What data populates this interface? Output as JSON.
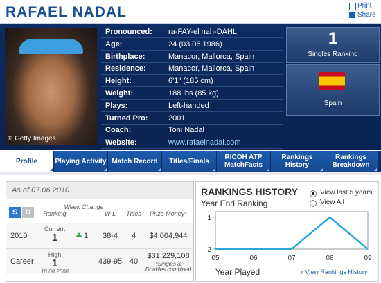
{
  "header": {
    "title": "RAFAEL NADAL",
    "links": [
      "Print",
      "Share"
    ]
  },
  "photo_credit": "© Getty Images",
  "bio": [
    {
      "label": "Pronounced:",
      "value": "ra-FAY-el nah-DAHL"
    },
    {
      "label": "Age:",
      "value": "24 (03.06.1986)"
    },
    {
      "label": "Birthplace:",
      "value": "Manacor, Mallorca, Spain"
    },
    {
      "label": "Residence:",
      "value": "Manacor, Mallorca, Spain"
    },
    {
      "label": "Height:",
      "value": "6'1\" (185 cm)"
    },
    {
      "label": "Weight:",
      "value": "188 lbs (85 kg)"
    },
    {
      "label": "Plays:",
      "value": "Left-handed"
    },
    {
      "label": "Turned Pro:",
      "value": "2001"
    },
    {
      "label": "Coach:",
      "value": "Toni Nadal"
    },
    {
      "label": "Website:",
      "value": "www.rafaelnadal.com"
    }
  ],
  "ranking_box": {
    "value": 1,
    "label": "Singles Ranking"
  },
  "country": "Spain",
  "tabs": [
    "Profile",
    "Playing Activity",
    "Match Record",
    "Titles/Finals",
    "RICOH ATP MatchFacts",
    "Rankings History",
    "Rankings Breakdown"
  ],
  "stats": {
    "as_of": "As of 07.06.2010",
    "toggles": [
      "S",
      "D"
    ],
    "columns": [
      "Ranking",
      "Week Change",
      "W-L",
      "Titles",
      "Prize Money*"
    ],
    "rows": [
      {
        "label": "2010",
        "ranking_caption": "Current",
        "ranking": 1,
        "week_change": 1,
        "wl": "38-4",
        "titles": 4,
        "prize": "$4,004,944"
      },
      {
        "label": "Career",
        "ranking_caption": "High",
        "ranking": 1,
        "ranking_date": "18.08.2008",
        "wl": "439-95",
        "titles": 40,
        "prize": "$31,229,108",
        "prize_note": "*Singles & Doubles combined"
      }
    ]
  },
  "rankings_chart": {
    "type": "line",
    "title": "RANKINGS HISTORY",
    "subtitle": "Year End Ranking",
    "options": [
      "View last 5 years",
      "View All"
    ],
    "selected": 0,
    "categories": [
      "05",
      "06",
      "07",
      "08",
      "09"
    ],
    "values": [
      2,
      2,
      2,
      1,
      2
    ],
    "color": "#29a8e0",
    "ylim": [
      2,
      1
    ],
    "yticks": [
      1,
      2
    ],
    "xlabel": "Year Played",
    "link": "» View Rankings History"
  }
}
